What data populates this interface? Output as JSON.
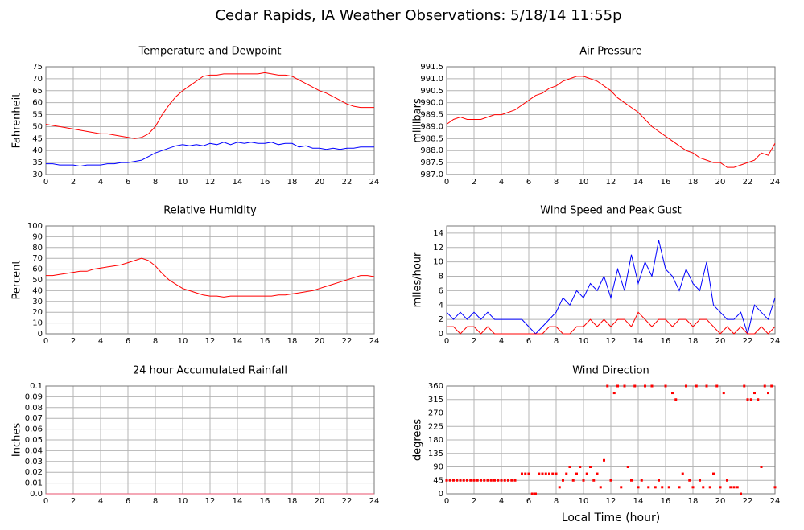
{
  "title": "Cedar Rapids, IA Weather Observations: 5/18/14 11:55p",
  "chart_data": [
    {
      "type": "line",
      "title": "Temperature and Dewpoint",
      "ylabel": "Fahrenheit",
      "x": [
        0,
        0.5,
        1,
        1.5,
        2,
        2.5,
        3,
        3.5,
        4,
        4.5,
        5,
        5.5,
        6,
        6.5,
        7,
        7.5,
        8,
        8.5,
        9,
        9.5,
        10,
        10.5,
        11,
        11.5,
        12,
        12.5,
        13,
        13.5,
        14,
        14.5,
        15,
        15.5,
        16,
        16.5,
        17,
        17.5,
        18,
        18.5,
        19,
        19.5,
        20,
        20.5,
        21,
        21.5,
        22,
        22.5,
        23,
        23.5,
        24
      ],
      "series": [
        {
          "color": "#ff0000",
          "values": [
            51,
            50.5,
            50,
            49.5,
            49,
            48.5,
            48,
            47.5,
            47,
            47,
            46.5,
            46,
            45.5,
            45,
            45.5,
            47,
            50,
            55,
            59,
            62.5,
            65,
            67,
            69,
            71,
            71.5,
            71.5,
            72,
            72,
            72,
            72,
            72,
            72,
            72.5,
            72,
            71.5,
            71.5,
            71,
            69.5,
            68,
            66.5,
            65,
            64,
            62.5,
            61,
            59.5,
            58.5,
            58,
            58,
            58
          ]
        },
        {
          "color": "#0000ff",
          "values": [
            34.5,
            34.5,
            34,
            34,
            34,
            33.5,
            34,
            34,
            34,
            34.5,
            34.5,
            35,
            35,
            35.5,
            36,
            37.5,
            39,
            40,
            41,
            42,
            42.5,
            42,
            42.5,
            42,
            43,
            42.5,
            43.5,
            42.5,
            43.5,
            43,
            43.5,
            43,
            43,
            43.5,
            42.5,
            43,
            43,
            41.5,
            42,
            41,
            41,
            40.5,
            41,
            40.5,
            41,
            41,
            41.5,
            41.5,
            41.5
          ]
        }
      ],
      "xlim": [
        0,
        24
      ],
      "xticks": [
        0,
        2,
        4,
        6,
        8,
        10,
        12,
        14,
        16,
        18,
        20,
        22,
        24
      ],
      "ylim": [
        30,
        75
      ],
      "yticks": [
        30,
        35,
        40,
        45,
        50,
        55,
        60,
        65,
        70,
        75
      ],
      "grid": true
    },
    {
      "type": "line",
      "title": "Air Pressure",
      "ylabel": "millibars",
      "x": [
        0,
        0.5,
        1,
        1.5,
        2,
        2.5,
        3,
        3.5,
        4,
        4.5,
        5,
        5.5,
        6,
        6.5,
        7,
        7.5,
        8,
        8.5,
        9,
        9.5,
        10,
        10.5,
        11,
        11.5,
        12,
        12.5,
        13,
        13.5,
        14,
        14.5,
        15,
        15.5,
        16,
        16.5,
        17,
        17.5,
        18,
        18.5,
        19,
        19.5,
        20,
        20.5,
        21,
        21.5,
        22,
        22.5,
        23,
        23.5,
        24
      ],
      "series": [
        {
          "color": "#ff0000",
          "values": [
            989.1,
            989.3,
            989.4,
            989.3,
            989.3,
            989.3,
            989.4,
            989.5,
            989.5,
            989.6,
            989.7,
            989.9,
            990.1,
            990.3,
            990.4,
            990.6,
            990.7,
            990.9,
            991.0,
            991.1,
            991.1,
            991.0,
            990.9,
            990.7,
            990.5,
            990.2,
            990.0,
            989.8,
            989.6,
            989.3,
            989.0,
            988.8,
            988.6,
            988.4,
            988.2,
            988.0,
            987.9,
            987.7,
            987.6,
            987.5,
            987.5,
            987.3,
            987.3,
            987.4,
            987.5,
            987.6,
            987.9,
            987.8,
            988.3
          ]
        }
      ],
      "xlim": [
        0,
        24
      ],
      "xticks": [
        0,
        2,
        4,
        6,
        8,
        10,
        12,
        14,
        16,
        18,
        20,
        22,
        24
      ],
      "ylim": [
        987,
        991.5
      ],
      "yticks": [
        {
          "value": 987,
          "label": "987.0"
        },
        {
          "value": 987.5,
          "label": "987.5"
        },
        {
          "value": 988,
          "label": "988.0"
        },
        {
          "value": 988.5,
          "label": "988.5"
        },
        {
          "value": 989,
          "label": "989.0"
        },
        {
          "value": 989.5,
          "label": "989.5"
        },
        {
          "value": 990,
          "label": "990.0"
        },
        {
          "value": 990.5,
          "label": "990.5"
        },
        {
          "value": 991,
          "label": "991.0"
        },
        {
          "value": 991.5,
          "label": "991.5"
        }
      ],
      "grid": true
    },
    {
      "type": "line",
      "title": "Relative Humidity",
      "ylabel": "Percent",
      "x": [
        0,
        0.5,
        1,
        1.5,
        2,
        2.5,
        3,
        3.5,
        4,
        4.5,
        5,
        5.5,
        6,
        6.5,
        7,
        7.5,
        8,
        8.5,
        9,
        9.5,
        10,
        10.5,
        11,
        11.5,
        12,
        12.5,
        13,
        13.5,
        14,
        14.5,
        15,
        15.5,
        16,
        16.5,
        17,
        17.5,
        18,
        18.5,
        19,
        19.5,
        20,
        20.5,
        21,
        21.5,
        22,
        22.5,
        23,
        23.5,
        24
      ],
      "series": [
        {
          "color": "#ff0000",
          "values": [
            54,
            54,
            55,
            56,
            57,
            58,
            58,
            60,
            61,
            62,
            63,
            64,
            66,
            68,
            70,
            68,
            63,
            56,
            50,
            46,
            42,
            40,
            38,
            36,
            35,
            35,
            34,
            35,
            35,
            35,
            35,
            35,
            35,
            35,
            36,
            36,
            37,
            38,
            39,
            40,
            42,
            44,
            46,
            48,
            50,
            52,
            54,
            54,
            53
          ]
        }
      ],
      "xlim": [
        0,
        24
      ],
      "xticks": [
        0,
        2,
        4,
        6,
        8,
        10,
        12,
        14,
        16,
        18,
        20,
        22,
        24
      ],
      "ylim": [
        0,
        100
      ],
      "yticks": [
        0,
        10,
        20,
        30,
        40,
        50,
        60,
        70,
        80,
        90,
        100
      ],
      "grid": true
    },
    {
      "type": "line",
      "title": "Wind Speed and Peak Gust",
      "ylabel": "miles/hour",
      "x": [
        0,
        0.5,
        1,
        1.5,
        2,
        2.5,
        3,
        3.5,
        4,
        4.5,
        5,
        5.5,
        6,
        6.5,
        7,
        7.5,
        8,
        8.5,
        9,
        9.5,
        10,
        10.5,
        11,
        11.5,
        12,
        12.5,
        13,
        13.5,
        14,
        14.5,
        15,
        15.5,
        16,
        16.5,
        17,
        17.5,
        18,
        18.5,
        19,
        19.5,
        20,
        20.5,
        21,
        21.5,
        22,
        22.5,
        23,
        23.5,
        24
      ],
      "series": [
        {
          "color": "#0000ff",
          "values": [
            3,
            2,
            3,
            2,
            3,
            2,
            3,
            2,
            2,
            2,
            2,
            2,
            1,
            0,
            1,
            2,
            3,
            5,
            4,
            6,
            5,
            7,
            6,
            8,
            5,
            9,
            6,
            11,
            7,
            10,
            8,
            13,
            9,
            8,
            6,
            9,
            7,
            6,
            10,
            4,
            3,
            2,
            2,
            3,
            0,
            4,
            3,
            2,
            5
          ]
        },
        {
          "color": "#ff0000",
          "values": [
            1,
            1,
            0,
            1,
            1,
            0,
            1,
            0,
            0,
            0,
            0,
            0,
            0,
            0,
            0,
            1,
            1,
            0,
            0,
            1,
            1,
            2,
            1,
            2,
            1,
            2,
            2,
            1,
            3,
            2,
            1,
            2,
            2,
            1,
            2,
            2,
            1,
            2,
            2,
            1,
            0,
            1,
            0,
            1,
            0,
            0,
            1,
            0,
            1
          ]
        }
      ],
      "xlim": [
        0,
        24
      ],
      "xticks": [
        0,
        2,
        4,
        6,
        8,
        10,
        12,
        14,
        16,
        18,
        20,
        22,
        24
      ],
      "ylim": [
        0,
        15
      ],
      "yticks": [
        0,
        2,
        4,
        6,
        8,
        10,
        12,
        14
      ],
      "grid": true
    },
    {
      "type": "line",
      "title": "24 hour Accumulated Rainfall",
      "ylabel": "Inches",
      "x": [
        0,
        24
      ],
      "series": [
        {
          "color": "#e8506e",
          "values": [
            0,
            0
          ]
        }
      ],
      "xlim": [
        0,
        24
      ],
      "xticks": [
        0,
        2,
        4,
        6,
        8,
        10,
        12,
        14,
        16,
        18,
        20,
        22,
        24
      ],
      "ylim": [
        0,
        0.1
      ],
      "yticks": [
        {
          "value": 0,
          "label": "0.0"
        },
        0.01,
        0.02,
        0.03,
        0.04,
        0.05,
        0.06,
        0.07,
        0.08,
        0.09,
        0.1
      ],
      "grid": true
    },
    {
      "type": "scatter",
      "title": "Wind Direction",
      "ylabel": "degrees",
      "xlabel": "Local Time (hour)",
      "x": [
        0,
        0.25,
        0.5,
        0.75,
        1,
        1.25,
        1.5,
        1.75,
        2,
        2.25,
        2.5,
        2.75,
        3,
        3.25,
        3.5,
        3.75,
        4,
        4.25,
        4.5,
        4.75,
        5,
        5.5,
        5.75,
        6,
        6.25,
        6.5,
        6.75,
        7,
        7.25,
        7.5,
        7.75,
        8,
        8.25,
        8.5,
        8.75,
        9,
        9.25,
        9.5,
        9.75,
        10,
        10.25,
        10.5,
        10.75,
        11,
        11.25,
        11.5,
        11.75,
        12,
        12.25,
        12.5,
        12.75,
        13,
        13.25,
        13.5,
        13.75,
        14,
        14.25,
        14.5,
        14.75,
        15,
        15.25,
        15.5,
        15.75,
        16,
        16.25,
        16.5,
        16.75,
        17,
        17.25,
        17.5,
        17.75,
        18,
        18.25,
        18.5,
        18.75,
        19,
        19.25,
        19.5,
        19.75,
        20,
        20.25,
        20.5,
        20.75,
        21,
        21.25,
        21.5,
        21.75,
        22,
        22.25,
        22.5,
        22.75,
        23,
        23.25,
        23.5,
        23.75,
        24
      ],
      "series": [
        {
          "color": "#ff0000",
          "values": [
            45,
            45,
            45,
            45,
            45,
            45,
            45,
            45,
            45,
            45,
            45,
            45,
            45,
            45,
            45,
            45,
            45,
            45,
            45,
            45,
            45,
            67,
            67,
            67,
            0,
            0,
            67,
            67,
            67,
            67,
            67,
            67,
            22,
            45,
            67,
            90,
            45,
            67,
            90,
            45,
            67,
            90,
            45,
            67,
            22,
            112,
            360,
            45,
            337,
            360,
            22,
            360,
            90,
            45,
            360,
            22,
            45,
            360,
            22,
            360,
            22,
            45,
            22,
            360,
            22,
            337,
            315,
            22,
            67,
            360,
            45,
            22,
            360,
            45,
            22,
            360,
            22,
            67,
            360,
            22,
            337,
            45,
            22,
            22,
            22,
            0,
            360,
            315,
            315,
            337,
            315,
            90,
            360,
            337,
            360,
            22
          ]
        }
      ],
      "xlim": [
        0,
        24
      ],
      "xticks": [
        0,
        2,
        4,
        6,
        8,
        10,
        12,
        14,
        16,
        18,
        20,
        22,
        24
      ],
      "ylim": [
        0,
        360
      ],
      "yticks": [
        0,
        45,
        90,
        135,
        180,
        225,
        270,
        315,
        360
      ],
      "grid": true
    }
  ]
}
